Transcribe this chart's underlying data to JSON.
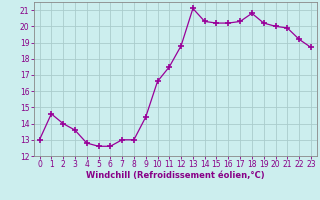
{
  "x": [
    0,
    1,
    2,
    3,
    4,
    5,
    6,
    7,
    8,
    9,
    10,
    11,
    12,
    13,
    14,
    15,
    16,
    17,
    18,
    19,
    20,
    21,
    22,
    23
  ],
  "y": [
    13.0,
    14.6,
    14.0,
    13.6,
    12.8,
    12.6,
    12.6,
    13.0,
    13.0,
    14.4,
    16.6,
    17.5,
    18.8,
    21.1,
    20.3,
    20.2,
    20.2,
    20.3,
    20.8,
    20.2,
    20.0,
    19.9,
    19.2,
    18.7
  ],
  "xlabel": "Windchill (Refroidissement éolien,°C)",
  "xlim": [
    -0.5,
    23.5
  ],
  "ylim": [
    12,
    21.5
  ],
  "yticks": [
    12,
    13,
    14,
    15,
    16,
    17,
    18,
    19,
    20,
    21
  ],
  "xticks": [
    0,
    1,
    2,
    3,
    4,
    5,
    6,
    7,
    8,
    9,
    10,
    11,
    12,
    13,
    14,
    15,
    16,
    17,
    18,
    19,
    20,
    21,
    22,
    23
  ],
  "line_color": "#990099",
  "marker": "+",
  "marker_size": 4,
  "bg_color": "#cceeee",
  "grid_color": "#aacccc",
  "label_color": "#880088",
  "tick_color": "#880088",
  "spine_color": "#888888",
  "xlabel_fontsize": 6.0,
  "tick_fontsize": 5.5
}
